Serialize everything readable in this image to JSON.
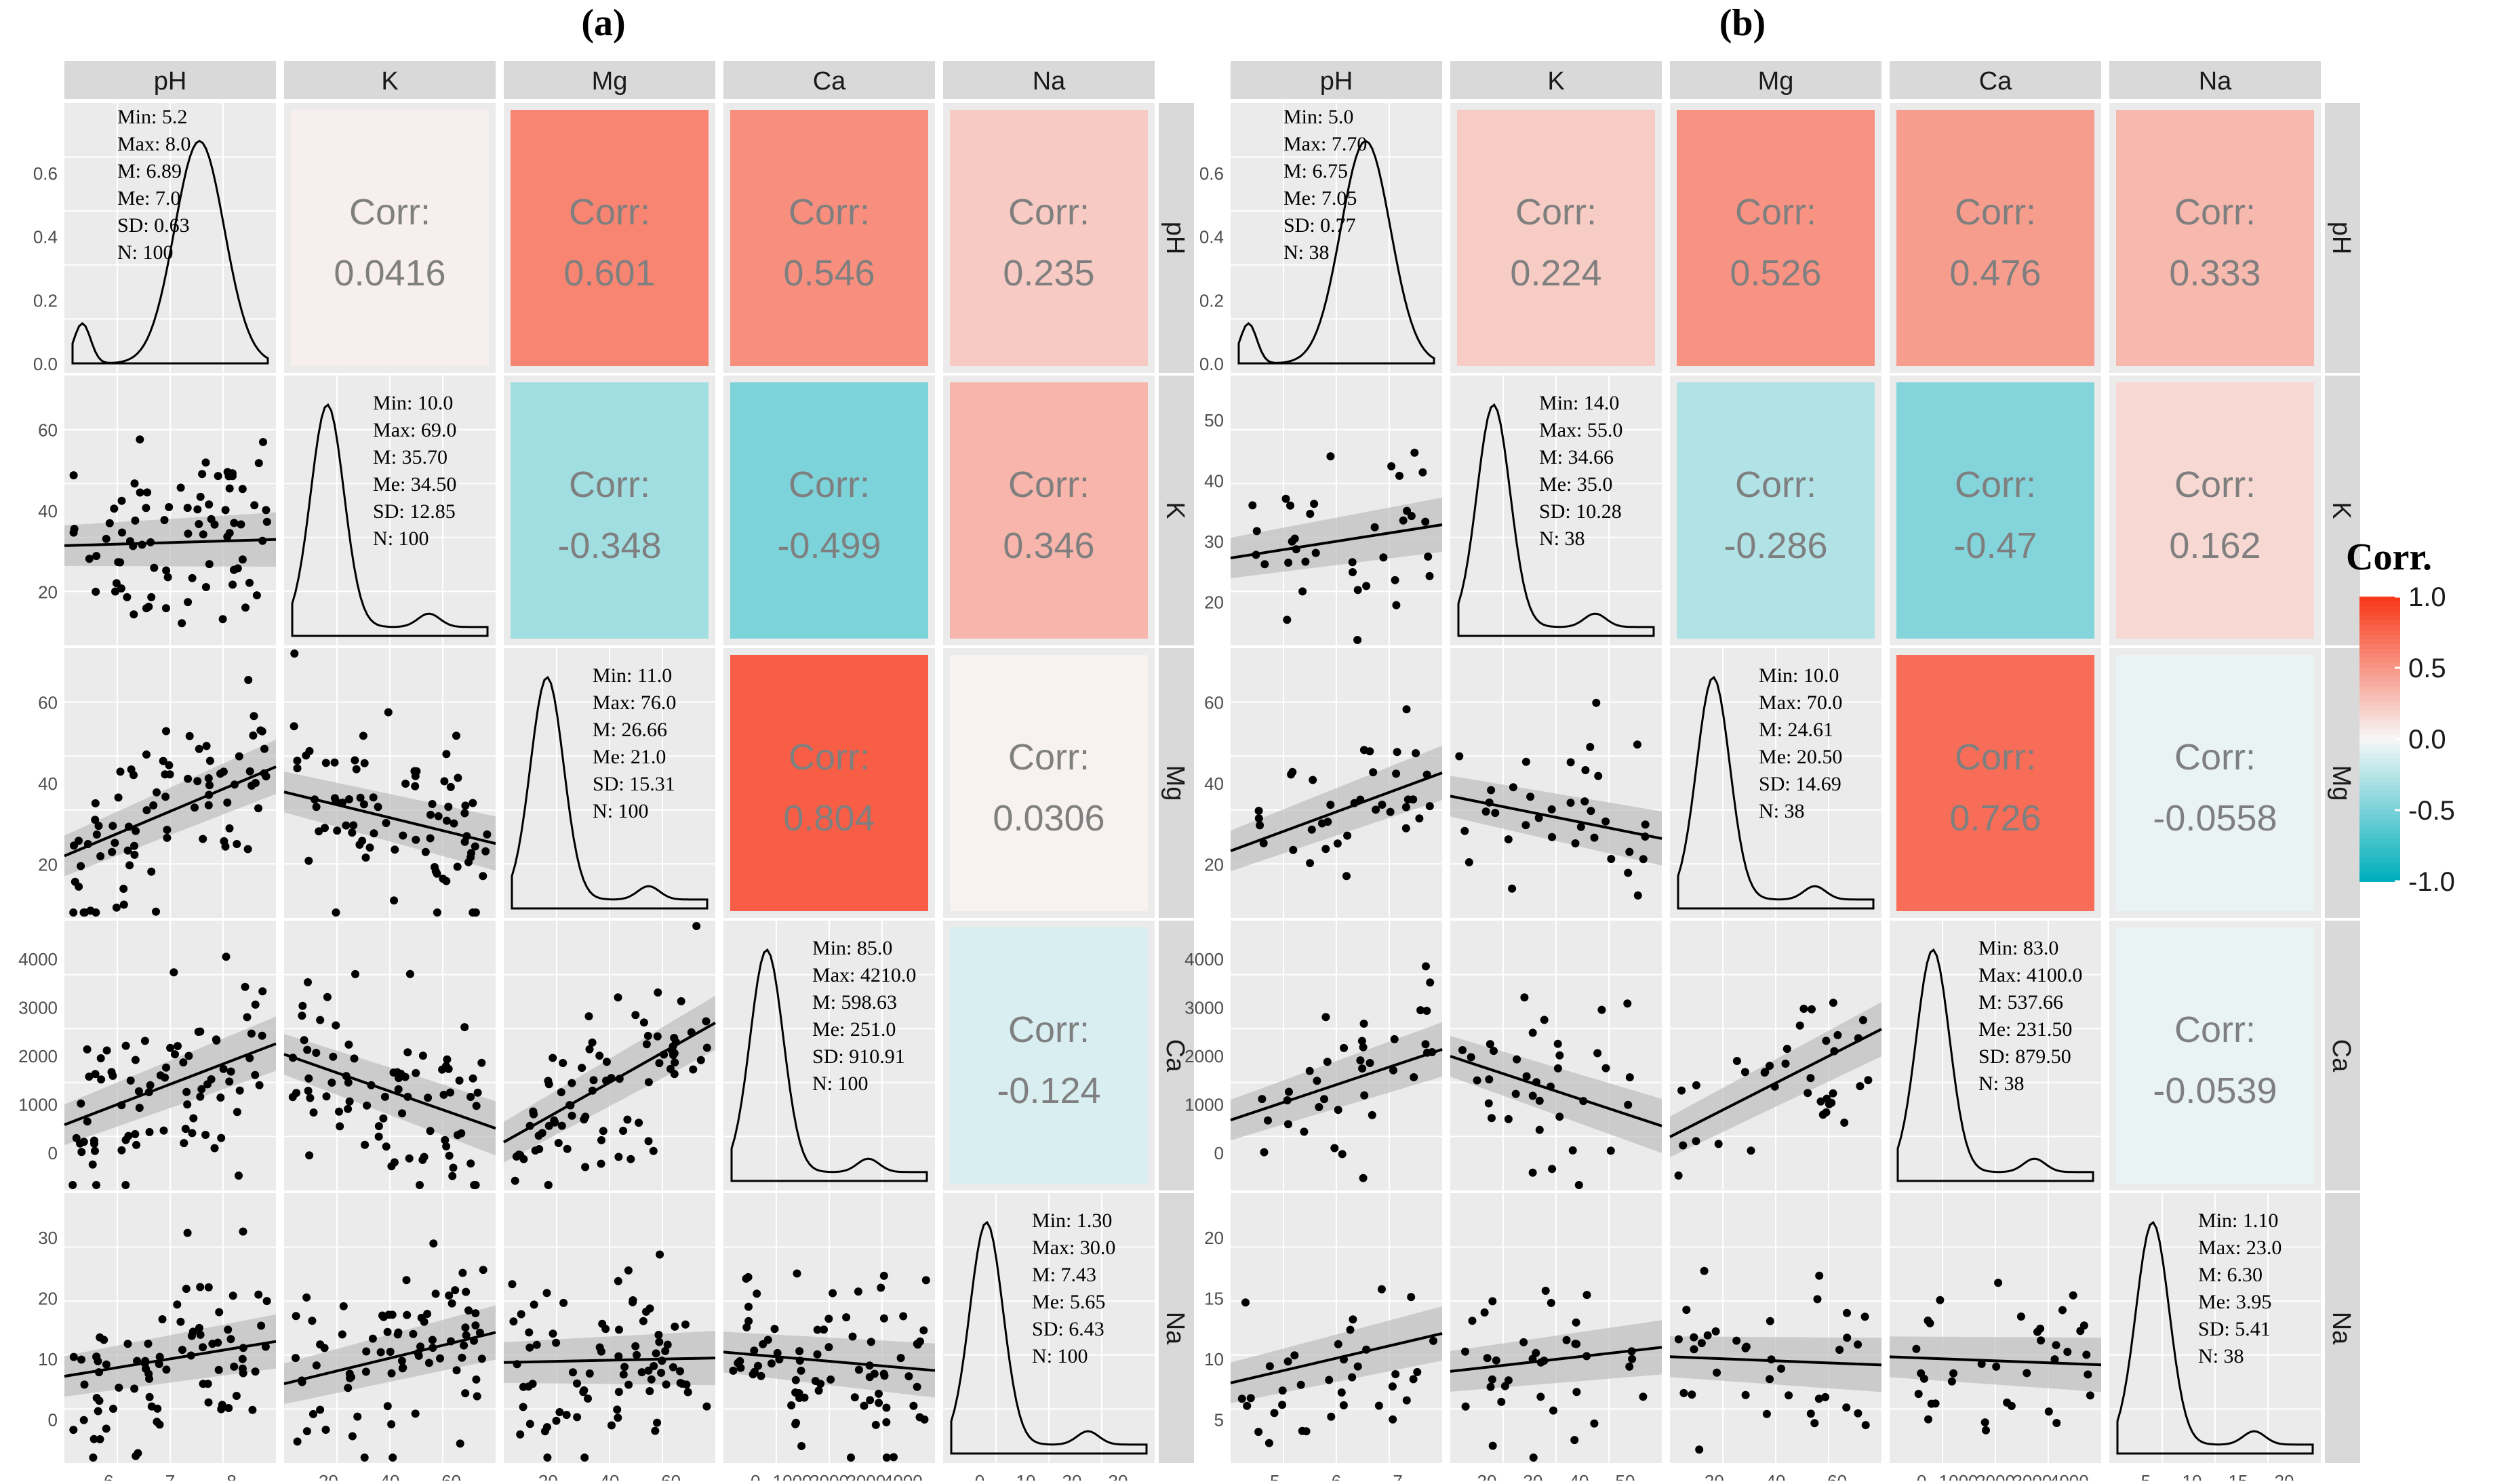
{
  "legend": {
    "title": "Corr.",
    "ticks": [
      "1.0",
      "0.5",
      "0.0",
      "-0.5",
      "-1.0"
    ],
    "tick_values": [
      1.0,
      0.5,
      0.0,
      -0.5,
      -1.0
    ],
    "colors": {
      "high": "#F8391A",
      "mid": "#F7F7F7",
      "low": "#00AFBB"
    }
  },
  "chart_data": [
    {
      "type": "scatter-matrix",
      "title": "(a)",
      "variables": [
        "pH",
        "K",
        "Mg",
        "Ca",
        "Na"
      ],
      "axis_ticks": {
        "pH": [
          "6",
          "7",
          "8"
        ],
        "K": [
          "20",
          "40",
          "60"
        ],
        "Mg": [
          "20",
          "40",
          "60"
        ],
        "Ca": [
          "0",
          "1000",
          "2000",
          "3000",
          "4000"
        ],
        "Na": [
          "0",
          "10",
          "20",
          "30"
        ]
      },
      "density_yticks": [
        "0.0",
        "0.2",
        "0.4",
        "0.6"
      ],
      "correlation_label": "Corr:",
      "correlations": {
        "pH-K": "0.0416",
        "pH-Mg": "0.601",
        "pH-Ca": "0.546",
        "pH-Na": "0.235",
        "K-Mg": "-0.348",
        "K-Ca": "-0.499",
        "K-Na": "0.346",
        "Mg-Ca": "0.804",
        "Mg-Na": "0.0306",
        "Ca-Na": "-0.124"
      },
      "stats": {
        "pH": [
          "Min: 5.2",
          "Max: 8.0",
          "M: 6.89",
          "Me: 7.0",
          "SD: 0.63",
          "N: 100"
        ],
        "K": [
          "Min: 10.0",
          "Max: 69.0",
          "M: 35.70",
          "Me: 34.50",
          "SD: 12.85",
          "N: 100"
        ],
        "Mg": [
          "Min: 11.0",
          "Max: 76.0",
          "M: 26.66",
          "Me: 21.0",
          "SD: 15.31",
          "N: 100"
        ],
        "Ca": [
          "Min: 85.0",
          "Max: 4210.0",
          "M: 598.63",
          "Me: 251.0",
          "SD: 910.91",
          "N: 100"
        ],
        "Na": [
          "Min: 1.30",
          "Max: 30.0",
          "M: 7.43",
          "Me: 5.65",
          "SD: 6.43",
          "N: 100"
        ]
      }
    },
    {
      "type": "scatter-matrix",
      "title": "(b)",
      "variables": [
        "pH",
        "K",
        "Mg",
        "Ca",
        "Na"
      ],
      "axis_ticks": {
        "pH": [
          "5",
          "6",
          "7"
        ],
        "K": [
          "20",
          "30",
          "40",
          "50"
        ],
        "Mg": [
          "20",
          "40",
          "60"
        ],
        "Ca": [
          "0",
          "1000",
          "2000",
          "3000",
          "4000"
        ],
        "Na": [
          "5",
          "10",
          "15",
          "20"
        ]
      },
      "row_ticks": {
        "K": [
          "20",
          "30",
          "40",
          "50"
        ],
        "Mg": [
          "20",
          "40",
          "60"
        ],
        "Ca": [
          "0",
          "1000",
          "2000",
          "3000",
          "4000"
        ],
        "Na": [
          "5",
          "10",
          "15",
          "20"
        ]
      },
      "density_yticks": [
        "0.0",
        "0.2",
        "0.4",
        "0.6"
      ],
      "correlation_label": "Corr:",
      "correlations": {
        "pH-K": "0.224",
        "pH-Mg": "0.526",
        "pH-Ca": "0.476",
        "pH-Na": "0.333",
        "K-Mg": "-0.286",
        "K-Ca": "-0.47",
        "K-Na": "0.162",
        "Mg-Ca": "0.726",
        "Mg-Na": "-0.0558",
        "Ca-Na": "-0.0539"
      },
      "stats": {
        "pH": [
          "Min: 5.0",
          "Max: 7.70",
          "M: 6.75",
          "Me: 7.05",
          "SD: 0.77",
          "N: 38"
        ],
        "K": [
          "Min: 14.0",
          "Max: 55.0",
          "M: 34.66",
          "Me: 35.0",
          "SD: 10.28",
          "N: 38"
        ],
        "Mg": [
          "Min: 10.0",
          "Max: 70.0",
          "M: 24.61",
          "Me: 20.50",
          "SD: 14.69",
          "N: 38"
        ],
        "Ca": [
          "Min: 83.0",
          "Max: 4100.0",
          "M: 537.66",
          "Me: 231.50",
          "SD: 879.50",
          "N: 38"
        ],
        "Na": [
          "Min: 1.10",
          "Max: 23.0",
          "M: 6.30",
          "Me: 3.95",
          "SD: 5.41",
          "N: 38"
        ]
      }
    }
  ]
}
